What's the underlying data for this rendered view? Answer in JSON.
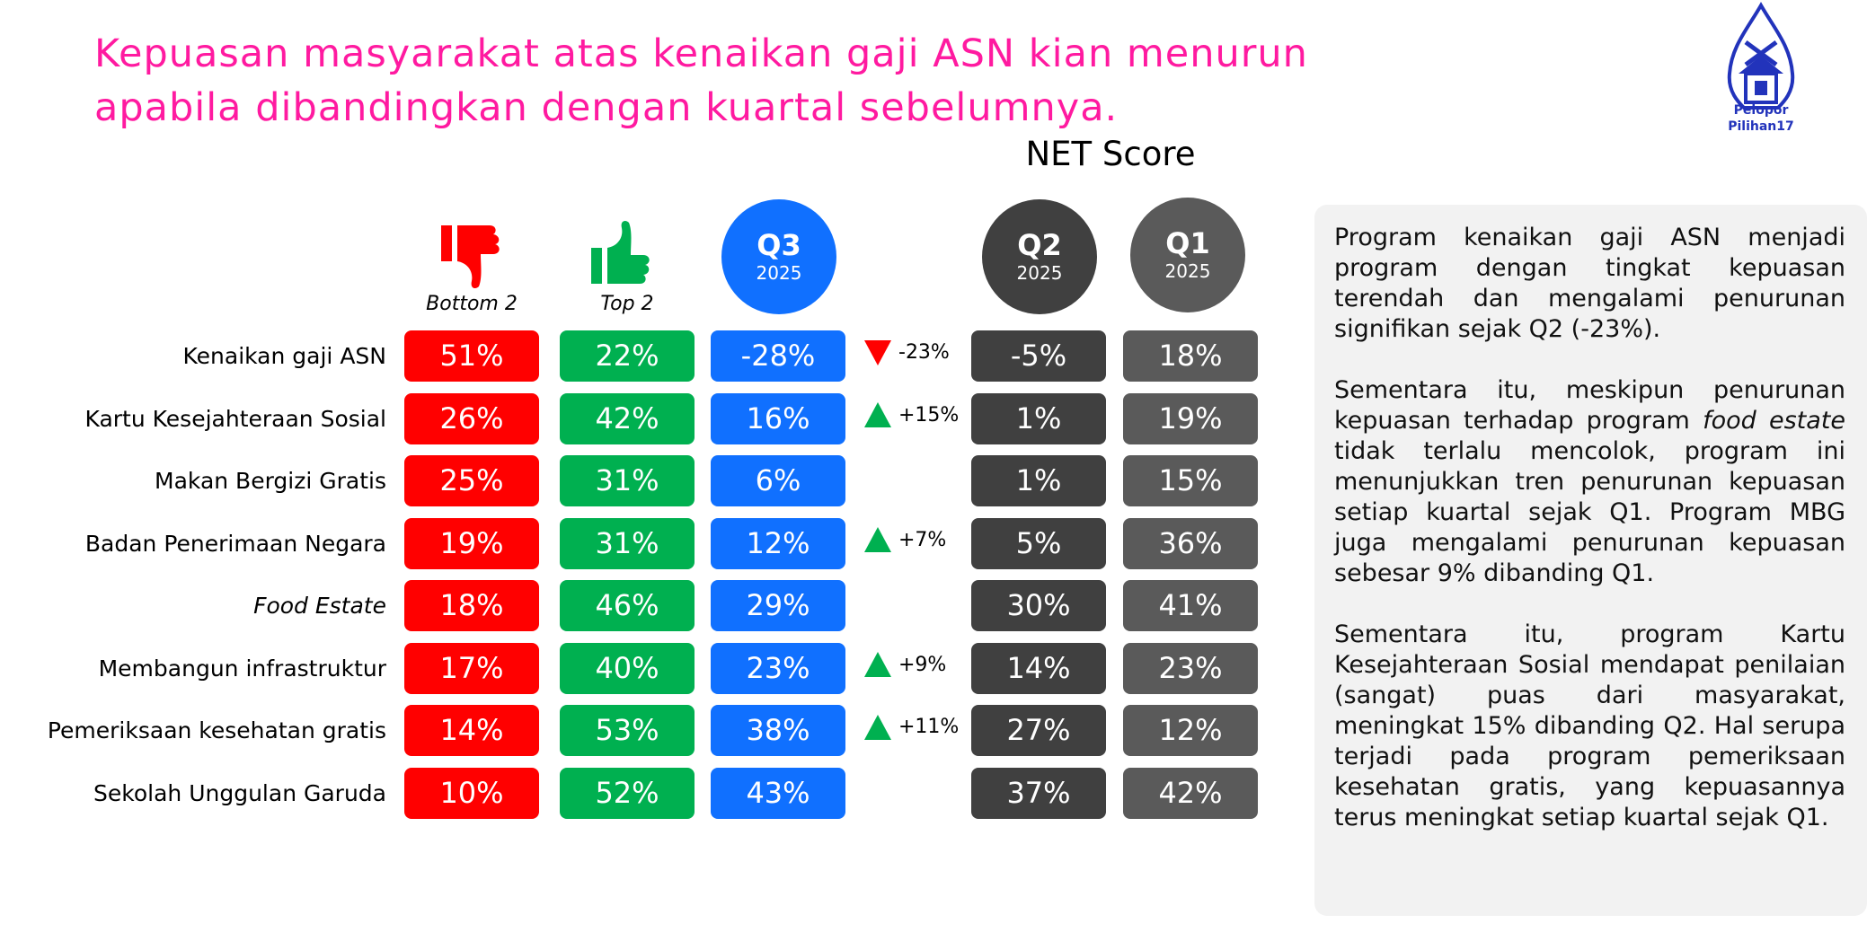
{
  "title": "Kepuasan masyarakat atas kenaikan gaji ASN kian menurun apabila dibandingkan dengan kuartal sebelumnya.",
  "logo": {
    "line1": "Pelopor",
    "line2": "Pilihan17"
  },
  "net_score_label": "NET Score",
  "chart_data": {
    "type": "table",
    "columns": [
      {
        "key": "bottom2",
        "label": "Bottom 2",
        "icon": "thumbs-down-icon",
        "color": "#ff0000"
      },
      {
        "key": "top2",
        "label": "Top 2",
        "icon": "thumbs-up-icon",
        "color": "#00b050"
      },
      {
        "key": "q3",
        "label": "Q3",
        "sublabel": "2025",
        "color": "#1070ff"
      },
      {
        "key": "q2",
        "label": "Q2",
        "sublabel": "2025",
        "color": "#404040"
      },
      {
        "key": "q1",
        "label": "Q1",
        "sublabel": "2025",
        "color": "#5a5a5a"
      }
    ],
    "rows": [
      {
        "label": "Kenaikan gaji ASN",
        "italic": false,
        "bottom2": "51%",
        "top2": "22%",
        "q3": "-28%",
        "delta": "-23%",
        "delta_dir": "down",
        "q2": "-5%",
        "q1": "18%"
      },
      {
        "label": "Kartu Kesejahteraan Sosial",
        "italic": false,
        "bottom2": "26%",
        "top2": "42%",
        "q3": "16%",
        "delta": "+15%",
        "delta_dir": "up",
        "q2": "1%",
        "q1": "19%"
      },
      {
        "label": "Makan Bergizi Gratis",
        "italic": false,
        "bottom2": "25%",
        "top2": "31%",
        "q3": "6%",
        "delta": "",
        "delta_dir": "",
        "q2": "1%",
        "q1": "15%"
      },
      {
        "label": "Badan Penerimaan Negara",
        "italic": false,
        "bottom2": "19%",
        "top2": "31%",
        "q3": "12%",
        "delta": "+7%",
        "delta_dir": "up",
        "q2": "5%",
        "q1": "36%"
      },
      {
        "label": "Food Estate",
        "italic": true,
        "bottom2": "18%",
        "top2": "46%",
        "q3": "29%",
        "delta": "",
        "delta_dir": "",
        "q2": "30%",
        "q1": "41%"
      },
      {
        "label": "Membangun infrastruktur",
        "italic": false,
        "bottom2": "17%",
        "top2": "40%",
        "q3": "23%",
        "delta": "+9%",
        "delta_dir": "up",
        "q2": "14%",
        "q1": "23%"
      },
      {
        "label": "Pemeriksaan kesehatan gratis",
        "italic": false,
        "bottom2": "14%",
        "top2": "53%",
        "q3": "38%",
        "delta": "+11%",
        "delta_dir": "up",
        "q2": "27%",
        "q1": "12%"
      },
      {
        "label": "Sekolah Unggulan Garuda",
        "italic": false,
        "bottom2": "10%",
        "top2": "52%",
        "q3": "43%",
        "delta": "",
        "delta_dir": "",
        "q2": "37%",
        "q1": "42%"
      }
    ]
  },
  "panel": {
    "paragraphs": [
      "Program kenaikan gaji ASN menjadi program dengan tingkat kepuasan terendah dan mengalami penurunan signifikan sejak Q2 (-23%).",
      "Sementara itu, meskipun penurunan kepuasan terhadap program <i>food estate</i> tidak terlalu mencolok, program ini menunjukkan tren penurunan kepuasan setiap kuartal sejak Q1. Program MBG juga mengalami penurunan kepuasan sebesar 9% dibanding Q1.",
      "Sementara itu, program Kartu Kesejahteraan Sosial mendapat penilaian (sangat) puas dari masyarakat, meningkat 15% dibanding Q2. Hal serupa terjadi pada program pemeriksaan kesehatan gratis, yang kepuasannya terus meningkat setiap kuartal sejak Q1."
    ]
  }
}
